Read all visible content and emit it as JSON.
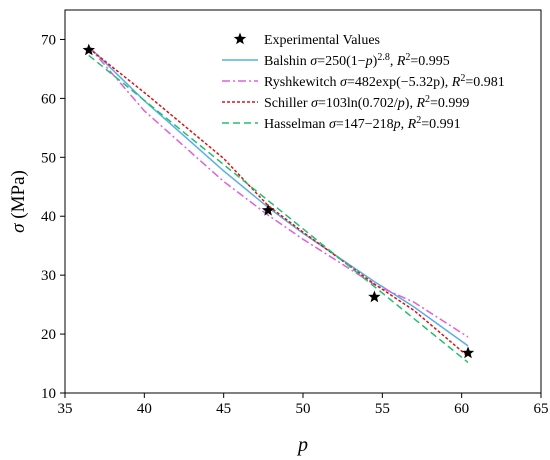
{
  "chart_data": {
    "type": "line",
    "xlabel": "p",
    "ylabel_symbol": "σ",
    "ylabel_unit": " (MPa)",
    "xlim": [
      35,
      65
    ],
    "ylim": [
      10,
      75
    ],
    "x_ticks": [
      35,
      40,
      45,
      50,
      55,
      60,
      65
    ],
    "y_ticks": [
      10,
      20,
      30,
      40,
      50,
      60,
      70
    ],
    "grid": false,
    "legend_position": "top-right",
    "experimental": {
      "name": "Experimental Values",
      "marker": "star",
      "color": "#000000",
      "x": [
        36.5,
        47.8,
        54.5,
        60.4
      ],
      "y": [
        68.2,
        41.0,
        26.3,
        16.8
      ]
    },
    "series": [
      {
        "id": "balshin",
        "color": "#5aaee8",
        "dash": "",
        "x": [
          36.5,
          40,
          45,
          47.8,
          50,
          54.5,
          57,
          60.4
        ],
        "y": [
          68.8,
          59.6,
          47.7,
          41.5,
          37.1,
          28.9,
          24.6,
          18.0
        ],
        "legend": [
          {
            "t": "Balshin "
          },
          {
            "t": "σ",
            "it": true
          },
          {
            "t": "=250(1−"
          },
          {
            "t": "p",
            "it": true
          },
          {
            "t": ")"
          },
          {
            "t": "2.8",
            "sup": true
          },
          {
            "t": ", "
          },
          {
            "t": "R",
            "it": true
          },
          {
            "t": "2",
            "sup": true
          },
          {
            "t": "=0.995"
          }
        ]
      },
      {
        "id": "ryshkewitch",
        "color": "#e060d8",
        "dash": "8 3 2 3",
        "x": [
          36.5,
          40,
          45,
          47.8,
          50,
          54.5,
          57,
          60.4
        ],
        "y": [
          68.8,
          57.9,
          45.9,
          40.2,
          36.1,
          28.4,
          25.4,
          19.5
        ],
        "legend": [
          {
            "t": "Ryshkewitch "
          },
          {
            "t": "σ",
            "it": true
          },
          {
            "t": "=482exp(−5.32p), "
          },
          {
            "t": "R",
            "it": true
          },
          {
            "t": "2",
            "sup": true
          },
          {
            "t": "=0.981"
          }
        ]
      },
      {
        "id": "schiller",
        "color": "#e01010",
        "dash": "3 2",
        "x": [
          36.5,
          40,
          45,
          47.8,
          50,
          54.5,
          57,
          60.4
        ],
        "y": [
          68.5,
          61.0,
          49.8,
          41.8,
          37.3,
          28.5,
          24.0,
          16.2
        ],
        "legend": [
          {
            "t": "Schiller "
          },
          {
            "t": "σ",
            "it": true
          },
          {
            "t": "=103ln(0.702/"
          },
          {
            "t": "p",
            "it": true
          },
          {
            "t": "), "
          },
          {
            "t": "R",
            "it": true
          },
          {
            "t": "2",
            "sup": true
          },
          {
            "t": "=0.999"
          }
        ]
      },
      {
        "id": "hasselman",
        "color": "#20c070",
        "dash": "7 4",
        "x": [
          36.5,
          60.4
        ],
        "y": [
          67.3,
          15.2
        ],
        "legend": [
          {
            "t": "Hasselman "
          },
          {
            "t": "σ",
            "it": true
          },
          {
            "t": "=147−218"
          },
          {
            "t": "p",
            "it": true
          },
          {
            "t": ", "
          },
          {
            "t": "R",
            "it": true
          },
          {
            "t": "2",
            "sup": true
          },
          {
            "t": "=0.991"
          }
        ]
      }
    ]
  }
}
